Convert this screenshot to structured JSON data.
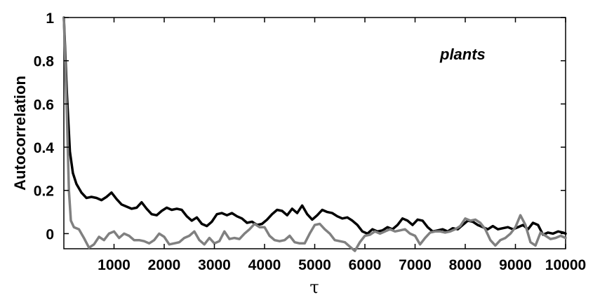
{
  "chart_data": {
    "type": "line",
    "title": "",
    "xlabel": "τ",
    "ylabel": "Autocorrelation",
    "annotation": "plants",
    "xlim": [
      0,
      10000
    ],
    "ylim": [
      -0.07,
      1.0
    ],
    "x_ticks": [
      1000,
      2000,
      3000,
      4000,
      5000,
      6000,
      7000,
      8000,
      9000,
      10000
    ],
    "x_tick_labels": [
      "1000",
      "2000",
      "3000",
      "4000",
      "5000",
      "6000",
      "7000",
      "8000",
      "9000",
      "10000"
    ],
    "y_ticks": [
      0,
      0.2,
      0.4,
      0.6,
      0.8,
      1
    ],
    "y_tick_labels": [
      "0",
      "0.2",
      "0.4",
      "0.6",
      "0.8",
      "1"
    ],
    "grid": false,
    "series": [
      {
        "color": "#000000",
        "x": [
          0,
          60,
          120,
          180,
          250,
          350,
          450,
          550,
          650,
          750,
          850,
          950,
          1050,
          1150,
          1250,
          1350,
          1450,
          1550,
          1650,
          1750,
          1850,
          1950,
          2050,
          2150,
          2250,
          2350,
          2450,
          2550,
          2650,
          2750,
          2850,
          2950,
          3050,
          3150,
          3250,
          3350,
          3450,
          3550,
          3650,
          3750,
          3850,
          3950,
          4050,
          4150,
          4250,
          4350,
          4450,
          4550,
          4650,
          4750,
          4850,
          4950,
          5050,
          5150,
          5250,
          5350,
          5450,
          5550,
          5650,
          5750,
          5850,
          5950,
          6050,
          6150,
          6250,
          6350,
          6450,
          6550,
          6650,
          6750,
          6850,
          6950,
          7050,
          7150,
          7250,
          7350,
          7450,
          7550,
          7650,
          7750,
          7850,
          7950,
          8050,
          8150,
          8250,
          8350,
          8450,
          8550,
          8650,
          8750,
          8850,
          8950,
          9050,
          9150,
          9250,
          9350,
          9450,
          9550,
          9650,
          9750,
          9850,
          9950,
          10000
        ],
        "y": [
          1.0,
          0.65,
          0.38,
          0.28,
          0.23,
          0.19,
          0.165,
          0.17,
          0.165,
          0.155,
          0.17,
          0.19,
          0.16,
          0.135,
          0.125,
          0.115,
          0.12,
          0.145,
          0.115,
          0.09,
          0.085,
          0.105,
          0.12,
          0.11,
          0.115,
          0.11,
          0.08,
          0.06,
          0.075,
          0.045,
          0.035,
          0.055,
          0.09,
          0.095,
          0.085,
          0.095,
          0.08,
          0.07,
          0.05,
          0.055,
          0.04,
          0.045,
          0.065,
          0.09,
          0.11,
          0.105,
          0.085,
          0.115,
          0.095,
          0.13,
          0.09,
          0.065,
          0.085,
          0.11,
          0.1,
          0.095,
          0.08,
          0.07,
          0.075,
          0.06,
          0.04,
          0.01,
          0.0,
          0.02,
          0.01,
          0.015,
          0.03,
          0.02,
          0.04,
          0.07,
          0.06,
          0.04,
          0.065,
          0.06,
          0.03,
          0.01,
          0.015,
          0.02,
          0.01,
          0.025,
          0.02,
          0.04,
          0.06,
          0.055,
          0.04,
          0.03,
          0.02,
          0.035,
          0.02,
          0.025,
          0.03,
          0.02,
          0.03,
          0.04,
          0.02,
          0.05,
          0.04,
          -0.005,
          0.005,
          0.0,
          0.01,
          0.005,
          0.0
        ]
      },
      {
        "color": "#808080",
        "x": [
          0,
          60,
          100,
          140,
          200,
          300,
          400,
          500,
          600,
          700,
          800,
          900,
          1000,
          1100,
          1200,
          1300,
          1400,
          1500,
          1600,
          1700,
          1800,
          1900,
          2000,
          2100,
          2200,
          2300,
          2400,
          2500,
          2600,
          2700,
          2800,
          2900,
          3000,
          3100,
          3200,
          3300,
          3400,
          3500,
          3600,
          3700,
          3800,
          3900,
          4000,
          4100,
          4200,
          4300,
          4400,
          4500,
          4600,
          4700,
          4800,
          4900,
          5000,
          5100,
          5200,
          5300,
          5400,
          5500,
          5600,
          5700,
          5800,
          5900,
          6000,
          6100,
          6200,
          6300,
          6400,
          6500,
          6600,
          6700,
          6800,
          6900,
          7000,
          7100,
          7200,
          7300,
          7400,
          7500,
          7600,
          7700,
          7800,
          7900,
          8000,
          8100,
          8200,
          8300,
          8400,
          8500,
          8600,
          8700,
          8800,
          8900,
          9000,
          9100,
          9200,
          9300,
          9400,
          9500,
          9600,
          9700,
          9800,
          9900,
          10000
        ],
        "y": [
          1.0,
          0.55,
          0.2,
          0.06,
          0.03,
          0.02,
          -0.02,
          -0.065,
          -0.05,
          -0.015,
          -0.03,
          0.0,
          0.01,
          -0.02,
          0.0,
          -0.01,
          -0.03,
          -0.03,
          -0.035,
          -0.045,
          -0.03,
          0.0,
          -0.015,
          -0.05,
          -0.045,
          -0.04,
          -0.02,
          -0.01,
          0.01,
          -0.03,
          -0.05,
          -0.02,
          -0.045,
          -0.035,
          0.01,
          -0.025,
          -0.02,
          -0.025,
          0.0,
          0.02,
          0.045,
          0.03,
          0.03,
          -0.01,
          -0.03,
          -0.035,
          -0.03,
          -0.01,
          -0.04,
          -0.045,
          -0.045,
          0.0,
          0.04,
          0.045,
          0.02,
          0.0,
          -0.03,
          -0.035,
          -0.04,
          -0.06,
          -0.08,
          -0.04,
          -0.01,
          -0.005,
          0.01,
          0.0,
          0.01,
          0.02,
          0.01,
          0.015,
          0.02,
          0.0,
          -0.01,
          -0.05,
          -0.02,
          0.005,
          0.01,
          0.01,
          0.005,
          0.01,
          0.02,
          0.035,
          0.07,
          0.06,
          0.065,
          0.05,
          0.02,
          -0.03,
          -0.055,
          -0.03,
          -0.02,
          0.0,
          0.03,
          0.085,
          0.04,
          -0.04,
          -0.055,
          0.005,
          -0.01,
          -0.025,
          -0.02,
          -0.01,
          -0.02
        ]
      }
    ]
  }
}
